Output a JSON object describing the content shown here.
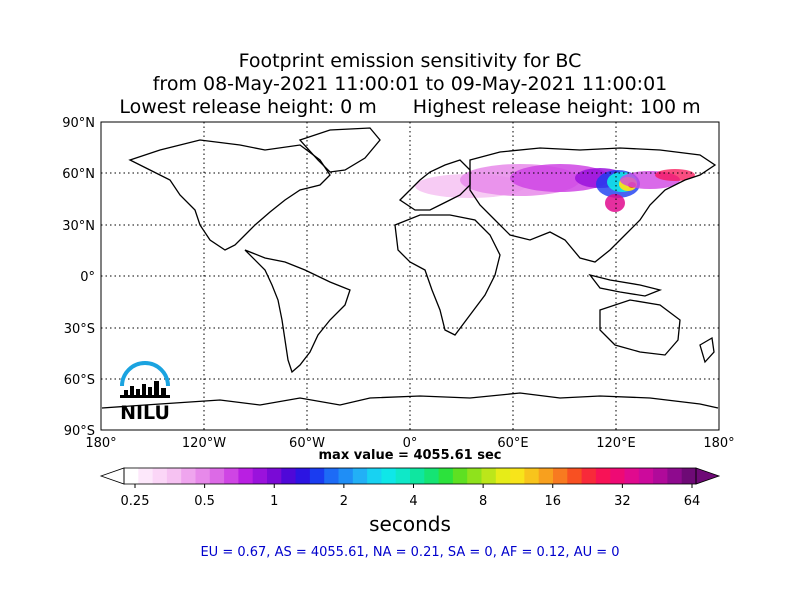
{
  "title": {
    "line1": "Footprint emission sensitivity for BC",
    "line2": "from 08-May-2021 11:00:01 to 09-May-2021 11:00:01",
    "lowest": "Lowest release height: 0 m",
    "highest": "Highest release height: 100 m"
  },
  "map": {
    "lat_labels": [
      "90°N",
      "60°N",
      "30°N",
      "0°",
      "30°S",
      "60°S",
      "90°S"
    ],
    "lon_labels": [
      "180°",
      "120°W",
      "60°W",
      "0°",
      "60°E",
      "120°E",
      "180°"
    ],
    "grid": "dotted",
    "logo_text": "NILU"
  },
  "max_value_text": "max value = 4055.61 sec",
  "colorbar": {
    "tick_labels": [
      "0.25",
      "0.5",
      "1",
      "2",
      "4",
      "8",
      "16",
      "32",
      "64"
    ],
    "unit_label": "seconds",
    "colors": [
      "#ffffff",
      "#fde8fb",
      "#fbd6f7",
      "#f6c2f2",
      "#efa5ee",
      "#e789ea",
      "#dc6ae6",
      "#cf45e4",
      "#b91fe2",
      "#9a12dc",
      "#7a0ad6",
      "#4f08d8",
      "#2c14e2",
      "#1a3cf0",
      "#1d6bf6",
      "#1f8ef6",
      "#22b0f6",
      "#18d2f2",
      "#0fe7e8",
      "#0fe8c8",
      "#0fe6a0",
      "#15e474",
      "#2ce23c",
      "#5ee022",
      "#8fe21c",
      "#bce61a",
      "#e6ec18",
      "#f8e41a",
      "#f8c41c",
      "#f8a01e",
      "#f87a20",
      "#f85022",
      "#f82a3a",
      "#f81256",
      "#ee0a74",
      "#e00a8e",
      "#cc0a9c",
      "#b00a9a",
      "#8e0a8e",
      "#6e0a76"
    ]
  },
  "regions_text": "EU = 0.67,  AS = 4055.61,  NA = 0.21,  SA = 0,  AF = 0.12,  AU = 0"
}
